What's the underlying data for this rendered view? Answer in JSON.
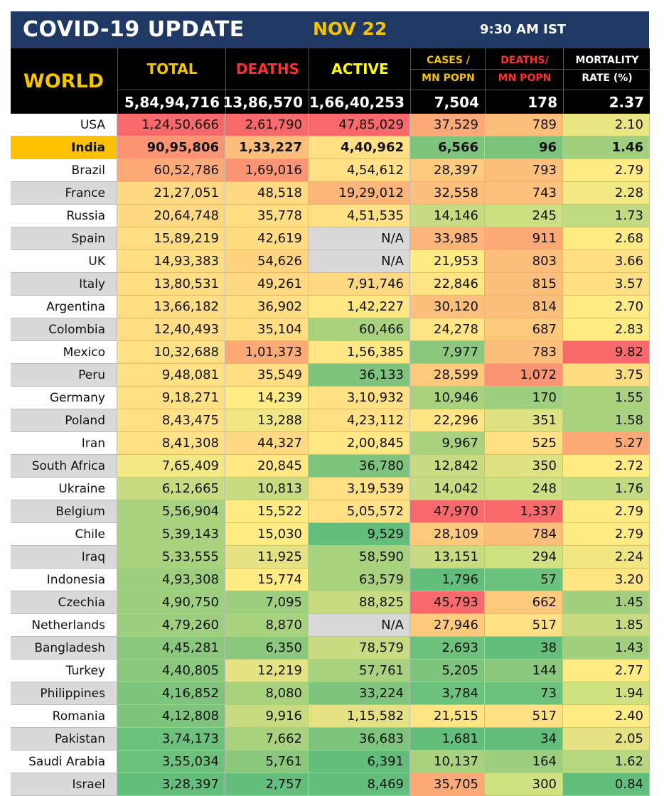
{
  "banner": {
    "title": "COVID-19 UPDATE",
    "date": "NOV 22",
    "time": "9:30 AM IST"
  },
  "header": {
    "region": "WORLD",
    "total": "TOTAL",
    "deaths": "DEATHS",
    "active": "ACTIVE",
    "cases_per_mn_1": "CASES /",
    "cases_per_mn_2": "MN POPN",
    "deaths_per_mn_1": "DEATHS/",
    "deaths_per_mn_2": "MN POPN",
    "mortality_1": "MORTALITY",
    "mortality_2": "RATE (%)"
  },
  "colors": {
    "banner": "#1f3864",
    "gold": "#f5c400",
    "red": "#ff3030",
    "green": "#63be7b"
  },
  "world": {
    "total": "5,84,94,716",
    "deaths": "13,86,570",
    "active": "1,66,40,253",
    "cases_mn": "7,504",
    "deaths_mn": "178",
    "mortality": "2.37"
  },
  "rows": [
    {
      "country": "USA",
      "total": "1,24,50,666",
      "deaths": "2,61,790",
      "active": "47,85,029",
      "cases_mn": "37,529",
      "deaths_mn": "789",
      "mortality": "2.10",
      "c": [
        "#f8696b",
        "#f8696b",
        "#f8696b",
        "#fbaa77",
        "#fcbf7b",
        "#e9e583"
      ]
    },
    {
      "country": "India",
      "total": "90,95,806",
      "deaths": "1,33,227",
      "active": "4,40,962",
      "cases_mn": "6,566",
      "deaths_mn": "96",
      "mortality": "1.46",
      "c": [
        "#fa9473",
        "#fcbf7b",
        "#ffe084",
        "#7ec47d",
        "#7cc47c",
        "#a3d07f"
      ],
      "hl": true
    },
    {
      "country": "Brazil",
      "total": "60,52,786",
      "deaths": "1,69,016",
      "active": "4,54,612",
      "cases_mn": "28,397",
      "deaths_mn": "793",
      "mortality": "2.79",
      "c": [
        "#fbaa77",
        "#fa9473",
        "#ffe084",
        "#fdc97d",
        "#fcbf7b",
        "#ffeb84"
      ]
    },
    {
      "country": "France",
      "total": "21,27,051",
      "deaths": "48,518",
      "active": "19,29,012",
      "cases_mn": "32,558",
      "deaths_mn": "743",
      "mortality": "2.28",
      "c": [
        "#ffd981",
        "#ffd981",
        "#fcb579",
        "#fdc07c",
        "#fcc17c",
        "#f4e884"
      ]
    },
    {
      "country": "Russia",
      "total": "20,64,748",
      "deaths": "35,778",
      "active": "4,51,535",
      "cases_mn": "14,146",
      "deaths_mn": "245",
      "mortality": "1.73",
      "c": [
        "#ffd981",
        "#ffdd83",
        "#ffe084",
        "#c9db81",
        "#cce082",
        "#c2da81"
      ]
    },
    {
      "country": "Spain",
      "total": "15,89,219",
      "deaths": "42,619",
      "active": "N/A",
      "cases_mn": "33,985",
      "deaths_mn": "911",
      "mortality": "2.68",
      "c": [
        "#ffdd83",
        "#ffdb82",
        "#d9d9d9",
        "#fcb579",
        "#fbaa77",
        "#ffeb84"
      ]
    },
    {
      "country": "UK",
      "total": "14,93,383",
      "deaths": "54,626",
      "active": "N/A",
      "cases_mn": "21,953",
      "deaths_mn": "803",
      "mortality": "3.66",
      "c": [
        "#ffdd83",
        "#fed480",
        "#d9d9d9",
        "#ffeb84",
        "#fcbf7b",
        "#ffdf84"
      ]
    },
    {
      "country": "Italy",
      "total": "13,80,531",
      "deaths": "49,261",
      "active": "7,91,746",
      "cases_mn": "22,846",
      "deaths_mn": "815",
      "mortality": "3.57",
      "c": [
        "#ffdd83",
        "#ffd981",
        "#ffd981",
        "#fee483",
        "#fcbf7b",
        "#ffdf84"
      ]
    },
    {
      "country": "Argentina",
      "total": "13,66,182",
      "deaths": "36,902",
      "active": "1,42,227",
      "cases_mn": "30,120",
      "deaths_mn": "814",
      "mortality": "2.70",
      "c": [
        "#ffdd83",
        "#ffdd83",
        "#ffe884",
        "#fdc07c",
        "#fcbf7b",
        "#ffeb84"
      ]
    },
    {
      "country": "Colombia",
      "total": "12,40,493",
      "deaths": "35,104",
      "active": "60,466",
      "cases_mn": "24,278",
      "deaths_mn": "687",
      "mortality": "2.83",
      "c": [
        "#ffdd83",
        "#ffdd83",
        "#a9d27f",
        "#fee483",
        "#fdc97d",
        "#ffeb84"
      ]
    },
    {
      "country": "Mexico",
      "total": "10,32,688",
      "deaths": "1,01,373",
      "active": "1,56,385",
      "cases_mn": "7,977",
      "deaths_mn": "783",
      "mortality": "9.82",
      "c": [
        "#ffe084",
        "#fbaa77",
        "#ffe884",
        "#8bc87d",
        "#fcbf7b",
        "#f8696b"
      ]
    },
    {
      "country": "Peru",
      "total": "9,48,081",
      "deaths": "35,549",
      "active": "36,133",
      "cases_mn": "28,599",
      "deaths_mn": "1,072",
      "mortality": "3.75",
      "c": [
        "#ffe084",
        "#ffdd83",
        "#7ec47d",
        "#fdc97d",
        "#fa9473",
        "#fedc82"
      ]
    },
    {
      "country": "Germany",
      "total": "9,18,271",
      "deaths": "14,239",
      "active": "3,10,932",
      "cases_mn": "10,946",
      "deaths_mn": "170",
      "mortality": "1.55",
      "c": [
        "#ffe084",
        "#ffeb84",
        "#ffe084",
        "#a9d27f",
        "#9ecf7f",
        "#a9d27f"
      ]
    },
    {
      "country": "Poland",
      "total": "8,43,475",
      "deaths": "13,288",
      "active": "4,23,112",
      "cases_mn": "22,296",
      "deaths_mn": "351",
      "mortality": "1.58",
      "c": [
        "#ffe084",
        "#f0e784",
        "#ffe084",
        "#fee483",
        "#dfe283",
        "#a9d27f"
      ]
    },
    {
      "country": "Iran",
      "total": "8,41,308",
      "deaths": "44,327",
      "active": "2,00,845",
      "cases_mn": "9,967",
      "deaths_mn": "525",
      "mortality": "5.27",
      "c": [
        "#ffe084",
        "#ffd981",
        "#ffe884",
        "#a9d27f",
        "#ffe084",
        "#fbaa77"
      ]
    },
    {
      "country": "South Africa",
      "total": "7,65,409",
      "deaths": "20,845",
      "active": "36,780",
      "cases_mn": "12,842",
      "deaths_mn": "350",
      "mortality": "2.72",
      "c": [
        "#f4e884",
        "#ffe884",
        "#7ec47d",
        "#c9db81",
        "#dfe283",
        "#ffeb84"
      ]
    },
    {
      "country": "Ukraine",
      "total": "6,12,665",
      "deaths": "10,813",
      "active": "3,19,539",
      "cases_mn": "14,042",
      "deaths_mn": "248",
      "mortality": "1.76",
      "c": [
        "#c9db81",
        "#c9db81",
        "#ffe084",
        "#c9db81",
        "#cce082",
        "#c2da81"
      ]
    },
    {
      "country": "Belgium",
      "total": "5,56,904",
      "deaths": "15,522",
      "active": "5,05,572",
      "cases_mn": "47,970",
      "deaths_mn": "1,337",
      "mortality": "2.79",
      "c": [
        "#a9d27f",
        "#ffeb84",
        "#ffe084",
        "#f8696b",
        "#f8696b",
        "#ffeb84"
      ]
    },
    {
      "country": "Chile",
      "total": "5,39,143",
      "deaths": "15,030",
      "active": "9,529",
      "cases_mn": "28,109",
      "deaths_mn": "784",
      "mortality": "2.79",
      "c": [
        "#a9d27f",
        "#ffeb84",
        "#63be7b",
        "#fdc97d",
        "#fcbf7b",
        "#ffeb84"
      ]
    },
    {
      "country": "Iraq",
      "total": "5,33,555",
      "deaths": "11,925",
      "active": "58,590",
      "cases_mn": "13,151",
      "deaths_mn": "294",
      "mortality": "2.24",
      "c": [
        "#a9d27f",
        "#e4e283",
        "#a9d27f",
        "#c9db81",
        "#d0e182",
        "#f0e784"
      ]
    },
    {
      "country": "Indonesia",
      "total": "4,93,308",
      "deaths": "15,774",
      "active": "63,579",
      "cases_mn": "1,796",
      "deaths_mn": "57",
      "mortality": "3.20",
      "c": [
        "#9ecf7f",
        "#ffeb84",
        "#a9d27f",
        "#63be7b",
        "#6cc17c",
        "#ffe584"
      ]
    },
    {
      "country": "Czechia",
      "total": "4,90,750",
      "deaths": "7,095",
      "active": "88,825",
      "cases_mn": "45,793",
      "deaths_mn": "662",
      "mortality": "1.45",
      "c": [
        "#9ecf7f",
        "#9ecf7f",
        "#c9db81",
        "#f8696b",
        "#fdc97d",
        "#a3d07f"
      ]
    },
    {
      "country": "Netherlands",
      "total": "4,79,260",
      "deaths": "8,870",
      "active": "N/A",
      "cases_mn": "27,946",
      "deaths_mn": "517",
      "mortality": "1.85",
      "c": [
        "#9ecf7f",
        "#a9d27f",
        "#d9d9d9",
        "#fdc97d",
        "#ffe084",
        "#c9db81"
      ]
    },
    {
      "country": "Bangladesh",
      "total": "4,45,281",
      "deaths": "6,350",
      "active": "78,579",
      "cases_mn": "2,693",
      "deaths_mn": "38",
      "mortality": "1.43",
      "c": [
        "#8bc87d",
        "#8bc87d",
        "#c9db81",
        "#6cc17c",
        "#63be7b",
        "#a3d07f"
      ]
    },
    {
      "country": "Turkey",
      "total": "4,40,805",
      "deaths": "12,219",
      "active": "57,761",
      "cases_mn": "5,205",
      "deaths_mn": "144",
      "mortality": "2.77",
      "c": [
        "#8bc87d",
        "#e4e283",
        "#a9d27f",
        "#7ec47d",
        "#8bc87d",
        "#ffeb84"
      ]
    },
    {
      "country": "Philippines",
      "total": "4,16,852",
      "deaths": "8,080",
      "active": "33,224",
      "cases_mn": "3,784",
      "deaths_mn": "73",
      "mortality": "1.94",
      "c": [
        "#7ec47d",
        "#a9d27f",
        "#7ec47d",
        "#6cc17c",
        "#6cc17c",
        "#d0e182"
      ]
    },
    {
      "country": "Romania",
      "total": "4,12,808",
      "deaths": "9,916",
      "active": "1,15,582",
      "cases_mn": "21,515",
      "deaths_mn": "517",
      "mortality": "2.40",
      "c": [
        "#7ec47d",
        "#c9db81",
        "#e4e283",
        "#fee483",
        "#ffe084",
        "#fdeb84"
      ]
    },
    {
      "country": "Pakistan",
      "total": "3,74,173",
      "deaths": "7,662",
      "active": "36,683",
      "cases_mn": "1,681",
      "deaths_mn": "34",
      "mortality": "2.05",
      "c": [
        "#6cc17c",
        "#a9d27f",
        "#7ec47d",
        "#63be7b",
        "#63be7b",
        "#e4e283"
      ]
    },
    {
      "country": "Saudi Arabia",
      "total": "3,55,034",
      "deaths": "5,761",
      "active": "6,391",
      "cases_mn": "10,137",
      "deaths_mn": "164",
      "mortality": "1.62",
      "c": [
        "#6cc17c",
        "#8bc87d",
        "#63be7b",
        "#a9d27f",
        "#9ecf7f",
        "#b6d680"
      ]
    },
    {
      "country": "Israel",
      "total": "3,28,397",
      "deaths": "2,757",
      "active": "8,469",
      "cases_mn": "35,705",
      "deaths_mn": "300",
      "mortality": "0.84",
      "c": [
        "#63be7b",
        "#63be7b",
        "#63be7b",
        "#fbaa77",
        "#d0e182",
        "#63be7b"
      ]
    }
  ]
}
